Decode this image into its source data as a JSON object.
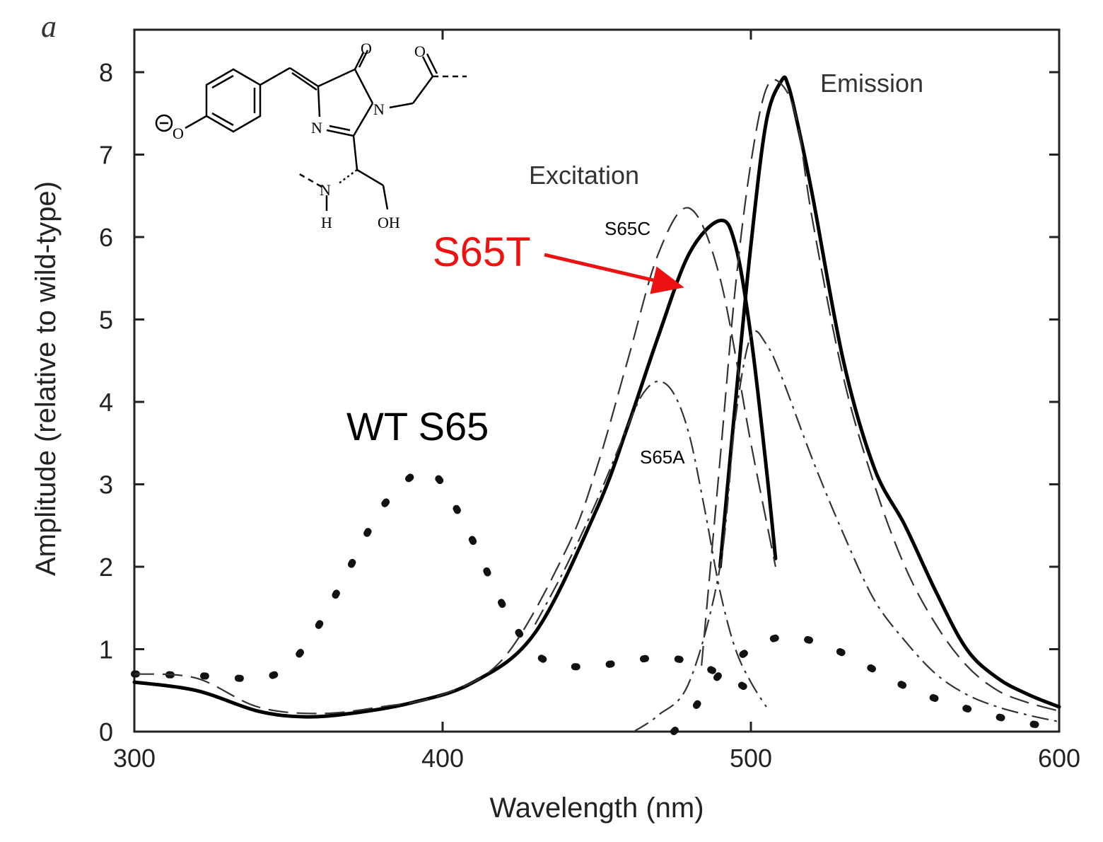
{
  "panel_label": "a",
  "chart_data": {
    "type": "line",
    "xlabel": "Wavelength (nm)",
    "ylabel": "Amplitude (relative to wild-type)",
    "xlim": [
      300,
      600
    ],
    "ylim": [
      0,
      8.5
    ],
    "xticks": [
      300,
      400,
      500,
      600
    ],
    "yticks": [
      0,
      1,
      2,
      3,
      4,
      5,
      6,
      7,
      8
    ],
    "grid": false,
    "annotations": {
      "excitation": "Excitation",
      "emission": "Emission",
      "s65t": "S65T",
      "s65c": "S65C",
      "s65a": "S65A",
      "wt": "WT S65"
    },
    "series": [
      {
        "name": "WT S65 excitation",
        "style": "dotted",
        "x": [
          300,
          320,
          340,
          350,
          360,
          370,
          380,
          390,
          395,
          400,
          410,
          420,
          430,
          440,
          450,
          460,
          470,
          480,
          490,
          500
        ],
        "y": [
          0.7,
          0.68,
          0.65,
          0.8,
          1.3,
          2.0,
          2.7,
          3.1,
          3.15,
          3.0,
          2.3,
          1.5,
          0.95,
          0.8,
          0.8,
          0.85,
          0.9,
          0.85,
          0.7,
          0.5
        ]
      },
      {
        "name": "WT S65 emission",
        "style": "dotted",
        "x": [
          475,
          480,
          490,
          500,
          510,
          520,
          530,
          540,
          550,
          560,
          570,
          580,
          590,
          600
        ],
        "y": [
          0.0,
          0.2,
          0.7,
          1.0,
          1.15,
          1.1,
          0.95,
          0.75,
          0.55,
          0.4,
          0.28,
          0.18,
          0.1,
          0.05
        ]
      },
      {
        "name": "S65T excitation",
        "style": "solid-thick",
        "x": [
          300,
          320,
          340,
          355,
          370,
          390,
          410,
          430,
          450,
          460,
          470,
          480,
          490,
          495,
          500,
          505,
          508
        ],
        "y": [
          0.6,
          0.5,
          0.25,
          0.18,
          0.22,
          0.35,
          0.6,
          1.2,
          2.7,
          3.7,
          4.8,
          5.8,
          6.2,
          5.9,
          4.8,
          3.2,
          2.1
        ]
      },
      {
        "name": "S65T emission",
        "style": "solid-thick",
        "x": [
          490,
          495,
          500,
          505,
          510,
          512,
          515,
          520,
          530,
          540,
          550,
          560,
          570,
          580,
          590,
          600
        ],
        "y": [
          2.0,
          4.0,
          5.9,
          7.4,
          7.9,
          7.85,
          7.4,
          6.5,
          4.5,
          3.2,
          2.5,
          1.7,
          1.0,
          0.65,
          0.45,
          0.3
        ]
      },
      {
        "name": "S65C excitation",
        "style": "dashed",
        "x": [
          300,
          320,
          340,
          360,
          380,
          400,
          420,
          440,
          450,
          460,
          470,
          480,
          490,
          500,
          508
        ],
        "y": [
          0.7,
          0.65,
          0.3,
          0.22,
          0.3,
          0.45,
          0.9,
          2.2,
          3.2,
          4.5,
          5.8,
          6.35,
          5.5,
          3.5,
          2.0
        ]
      },
      {
        "name": "S65C emission",
        "style": "dashed",
        "x": [
          484,
          490,
          495,
          500,
          505,
          510,
          515,
          520,
          530,
          540,
          550,
          560,
          570,
          580,
          590,
          600
        ],
        "y": [
          0.8,
          3.3,
          5.4,
          6.9,
          7.8,
          7.85,
          7.4,
          6.2,
          4.3,
          3.0,
          2.0,
          1.3,
          0.8,
          0.5,
          0.35,
          0.25
        ]
      },
      {
        "name": "S65A excitation",
        "style": "dash-dot",
        "x": [
          430,
          440,
          450,
          460,
          465,
          470,
          475,
          480,
          485,
          490,
          495,
          500,
          505
        ],
        "y": [
          1.3,
          2.0,
          2.8,
          3.7,
          4.1,
          4.25,
          4.1,
          3.6,
          2.7,
          1.7,
          1.0,
          0.6,
          0.3
        ]
      },
      {
        "name": "S65A emission",
        "style": "dash-dot",
        "x": [
          462,
          470,
          480,
          490,
          495,
          500,
          505,
          510,
          520,
          530,
          540,
          550,
          560,
          570,
          580,
          590,
          600
        ],
        "y": [
          0.0,
          0.2,
          0.6,
          2.0,
          3.8,
          4.8,
          4.7,
          4.3,
          3.3,
          2.4,
          1.6,
          1.1,
          0.7,
          0.45,
          0.3,
          0.2,
          0.12
        ]
      }
    ]
  }
}
